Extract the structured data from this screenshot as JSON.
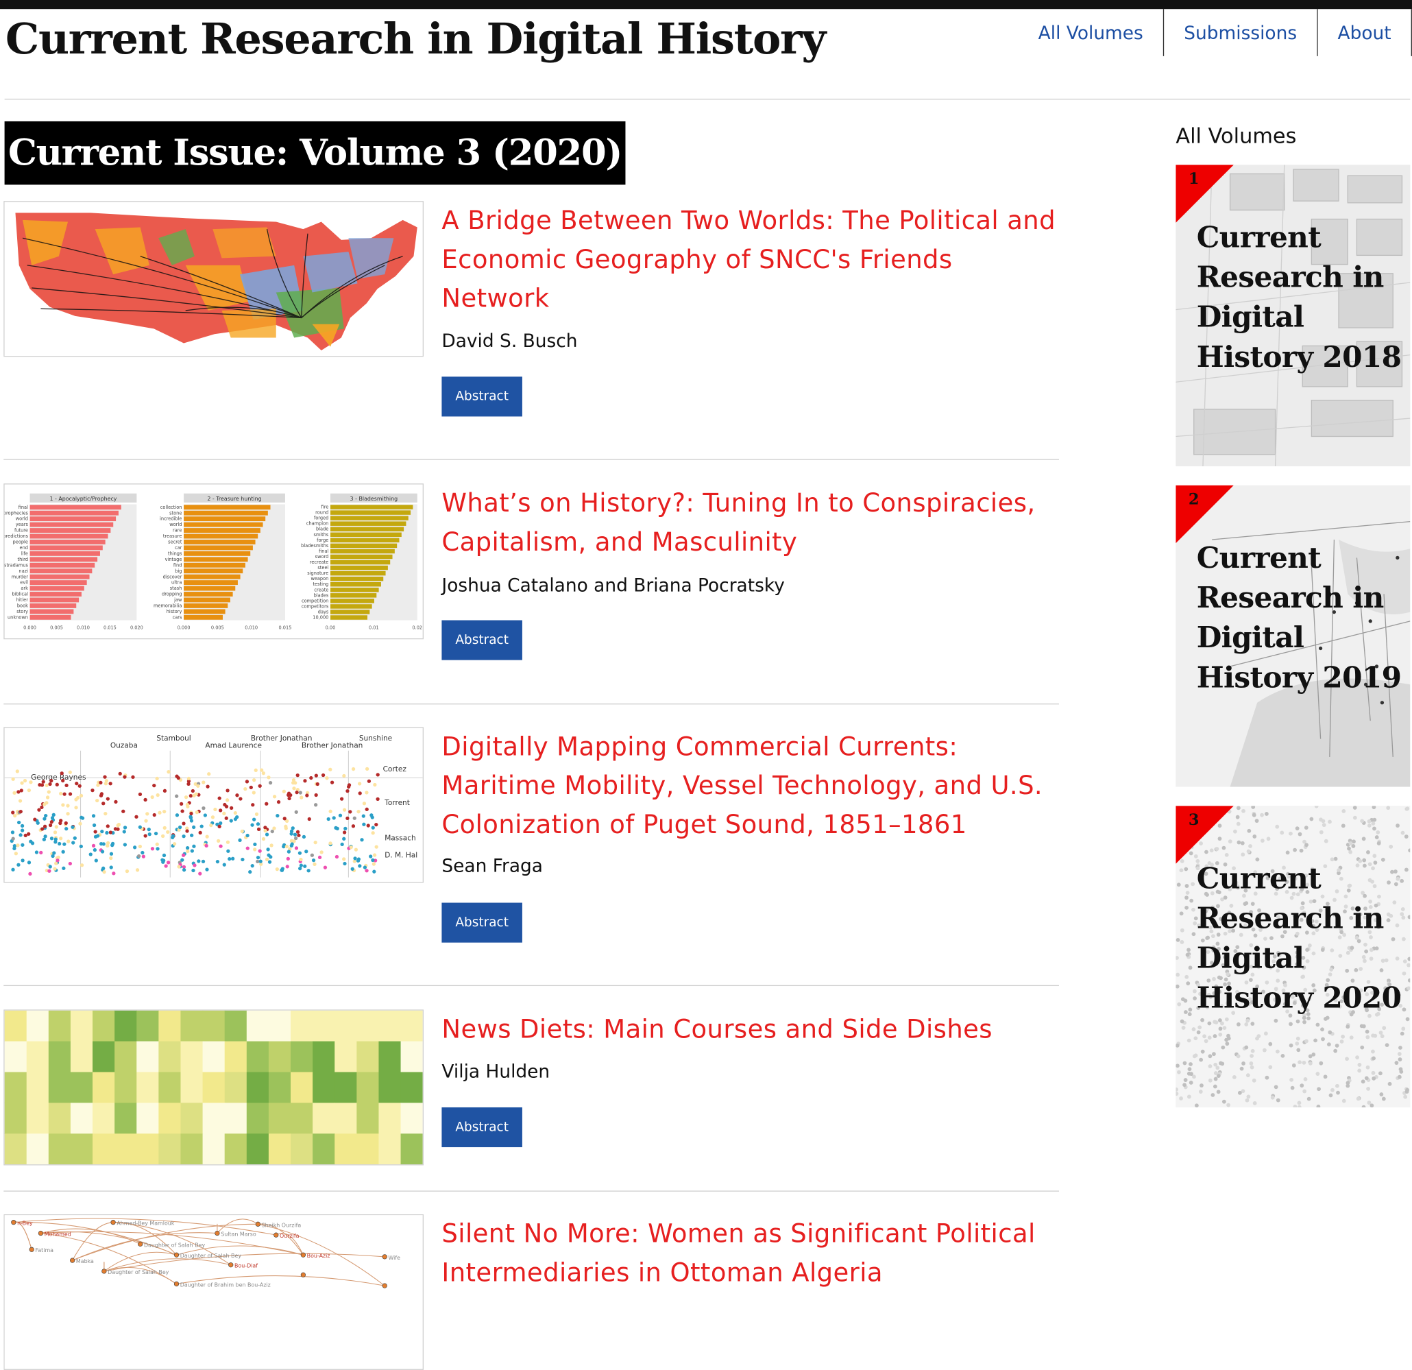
{
  "site": {
    "title": "Current Research in Digital History"
  },
  "nav": {
    "items": [
      "All Volumes",
      "Submissions",
      "About"
    ]
  },
  "issue": {
    "heading": "Current Issue: Volume 3 (2020)"
  },
  "articles": [
    {
      "title": "A Bridge Between Two Worlds: The Political and Economic Geography of SNCC's Friends Network",
      "author": "David S. Busch",
      "button": "Abstract"
    },
    {
      "title": "What’s on History?: Tuning In to Conspiracies, Capitalism, and Masculinity",
      "author": "Joshua Catalano and Briana Pocratsky",
      "button": "Abstract"
    },
    {
      "title": "Digitally Mapping Commercial Currents: Maritime Mobility, Vessel Technology, and U.S. Colonization of Puget Sound, 1851–1861",
      "author": "Sean Fraga",
      "button": "Abstract"
    },
    {
      "title": "News Diets: Main Courses and Side Dishes",
      "author": "Vilja Hulden",
      "button": "Abstract"
    },
    {
      "title": "Silent No More: Women as Significant Political Intermediaries in Ottoman Algeria",
      "author": "",
      "button": ""
    }
  ],
  "thumbnails": {
    "bars": {
      "panels": [
        "1 - Apocalyptic/Prophecy",
        "2 - Treasure hunting",
        "3 - Bladesmithing"
      ],
      "words": [
        [
          "final",
          "prophecies",
          "world",
          "years",
          "future",
          "predictions",
          "people",
          "end",
          "life",
          "third",
          "nostradamus",
          "nazi",
          "murder",
          "evil",
          "ark",
          "biblical",
          "hitler",
          "book",
          "story",
          "unknown"
        ],
        [
          "collection",
          "stone",
          "incredible",
          "world",
          "rare",
          "treasure",
          "secret",
          "car",
          "things",
          "vintage",
          "find",
          "big",
          "discover",
          "ultra",
          "stash",
          "dropping",
          "jaw",
          "memorabilia",
          "history",
          "cars"
        ],
        [
          "fire",
          "round",
          "forged",
          "champion",
          "blade",
          "smiths",
          "forge",
          "bladesmiths",
          "final",
          "sword",
          "recreate",
          "steel",
          "signature",
          "weapon",
          "testing",
          "create",
          "blades",
          "competition",
          "competitors",
          "days",
          "10,000"
        ]
      ],
      "axes": [
        [
          "0.000",
          "0.005",
          "0.010",
          "0.015",
          "0.020"
        ],
        [
          "0.000",
          "0.005",
          "0.010",
          "0.015"
        ],
        [
          "0.00",
          "0.01",
          "0.02"
        ]
      ]
    },
    "maritime": {
      "top_labels": [
        "Ouzaba",
        "Stamboul",
        "Amad Laurence",
        "Brother Jonathan",
        "Brother Jonathan",
        "Sunshine"
      ],
      "side_labels": [
        "George Raynes",
        "Cortez",
        "Torrent",
        "Massach",
        "D. M. Hal"
      ]
    },
    "network": {
      "labels": [
        "n-Bey",
        "Ahmed-Bey Mamlouk",
        "Sheikh Ourzifa",
        "Mohamed",
        "Daughter of Salah Bey",
        "Sultan Marso",
        "Ourzifa",
        "Fatima",
        "Daughter of Salah Bey",
        "Bou-Aziz",
        "Wife",
        "Mabka",
        "Bou-Diaf",
        "Daughter of Salah Bey",
        "Daughter of Brahim ben Bou-Aziz"
      ]
    }
  },
  "sidebar": {
    "title": "All Volumes",
    "volumes": [
      {
        "number": "1",
        "title": "Current Research in Digital History 2018"
      },
      {
        "number": "2",
        "title": "Current Research in Digital History 2019"
      },
      {
        "number": "3",
        "title": "Current Research in Digital History 2020"
      }
    ]
  },
  "colors": {
    "accent_red": "#e61f1f",
    "link_blue": "#1d4fa3",
    "button_blue": "#1f53a3",
    "heading_bg": "#000000"
  }
}
